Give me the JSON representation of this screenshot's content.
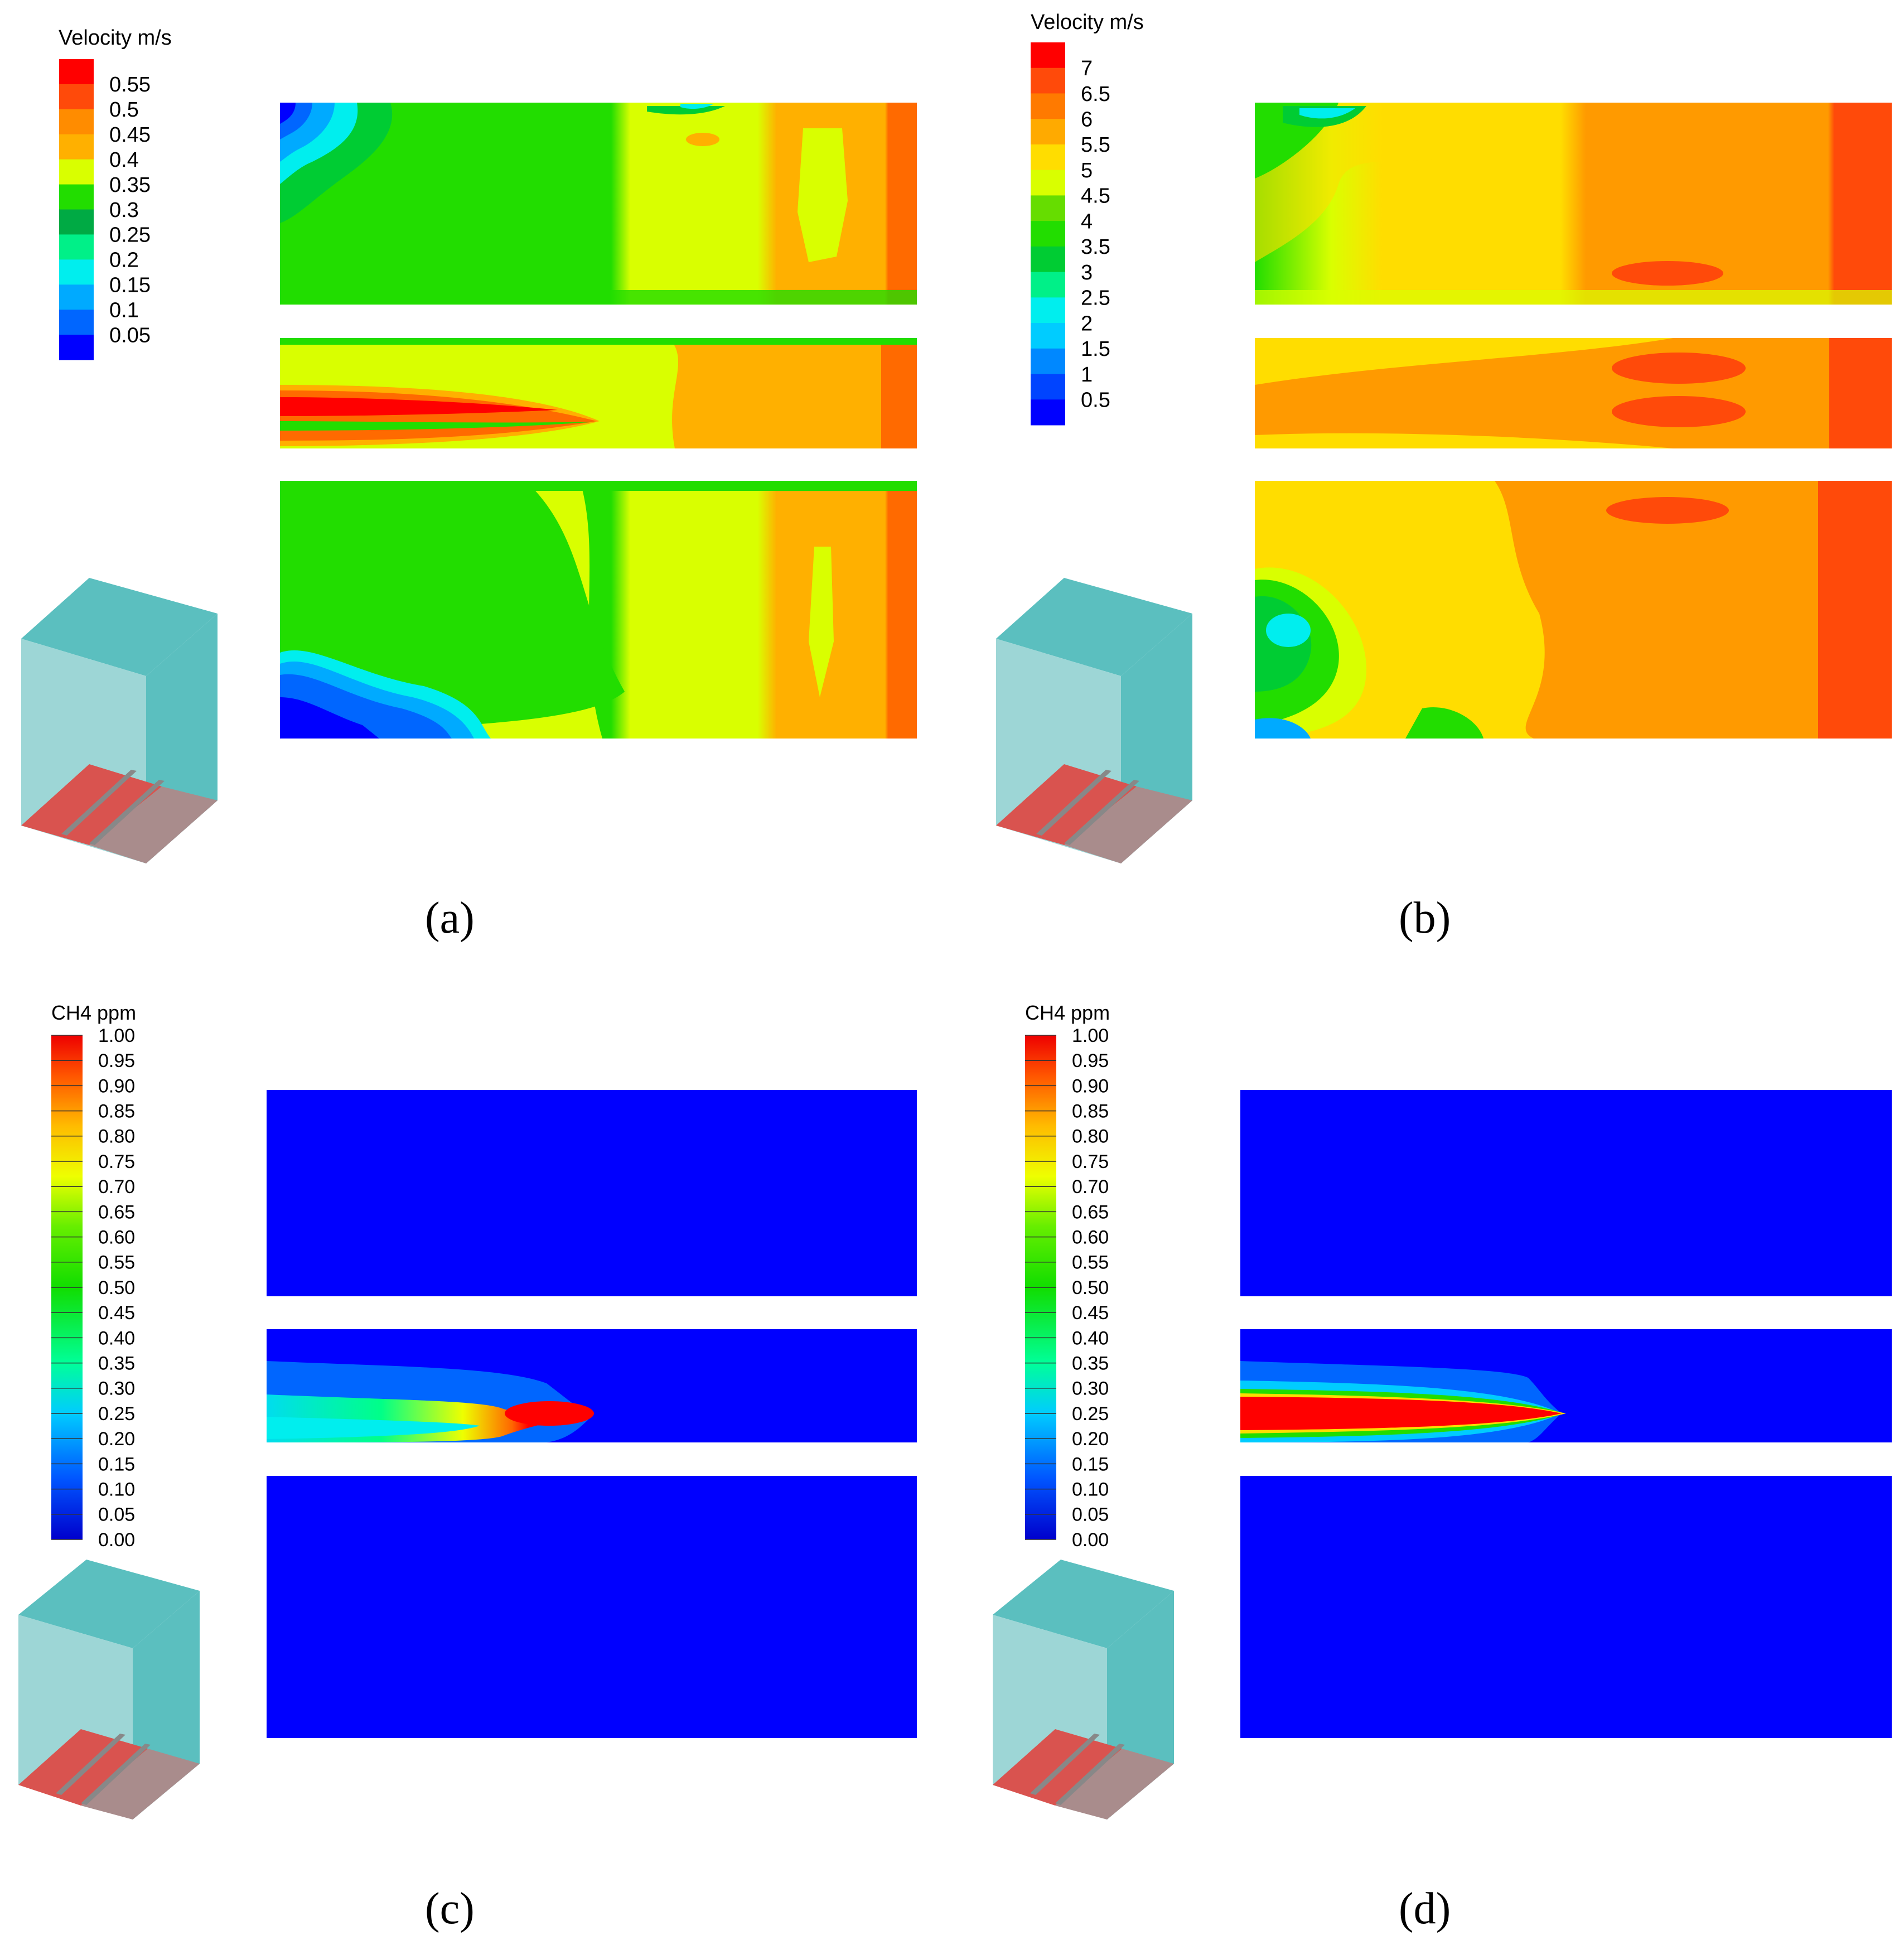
{
  "figure": {
    "panels": [
      {
        "id": "a",
        "caption": "(a)",
        "quantity": "velocity",
        "legend": {
          "title": "Velocity m/s",
          "ticks": [
            "0.55",
            "0.5",
            "0.45",
            "0.4",
            "0.35",
            "0.3",
            "0.25",
            "0.2",
            "0.15",
            "0.1",
            "0.05"
          ],
          "range": [
            0.05,
            0.55
          ]
        }
      },
      {
        "id": "b",
        "caption": "(b)",
        "quantity": "velocity",
        "legend": {
          "title": "Velocity m/s",
          "ticks": [
            "7",
            "6.5",
            "6",
            "5.5",
            "5",
            "4.5",
            "4",
            "3.5",
            "3",
            "2.5",
            "2",
            "1.5",
            "1",
            "0.5"
          ],
          "range": [
            0.5,
            7
          ]
        }
      },
      {
        "id": "c",
        "caption": "(c)",
        "quantity": "ch4",
        "legend": {
          "title": "CH4 ppm",
          "ticks": [
            "1.00",
            "0.95",
            "0.90",
            "0.85",
            "0.80",
            "0.75",
            "0.70",
            "0.65",
            "0.60",
            "0.55",
            "0.50",
            "0.45",
            "0.40",
            "0.35",
            "0.30",
            "0.25",
            "0.20",
            "0.15",
            "0.10",
            "0.05",
            "0.00"
          ],
          "range": [
            0.0,
            1.0
          ]
        }
      },
      {
        "id": "d",
        "caption": "(d)",
        "quantity": "ch4",
        "legend": {
          "title": "CH4 ppm",
          "ticks": [
            "1.00",
            "0.95",
            "0.90",
            "0.85",
            "0.80",
            "0.75",
            "0.70",
            "0.65",
            "0.60",
            "0.55",
            "0.50",
            "0.45",
            "0.40",
            "0.35",
            "0.30",
            "0.25",
            "0.20",
            "0.15",
            "0.10",
            "0.05",
            "0.00"
          ],
          "range": [
            0.0,
            1.0
          ]
        }
      }
    ],
    "colors": {
      "red": "#ff0000",
      "red_orange": "#ff4a0a",
      "orange": "#ff8c00",
      "amber": "#ffb000",
      "yellow": "#ffdd00",
      "yellow_green": "#d9ff00",
      "green": "#22dd00",
      "green2": "#00cc33",
      "spring": "#00f088",
      "cyan": "#00eeee",
      "sky": "#00aaff",
      "azure": "#0066ff",
      "blue": "#0000ff",
      "room_front": "#9dd6d6",
      "room_side": "#5bbfbf",
      "floor_red": "#d9534f",
      "floor_grey": "#a98c8c"
    }
  }
}
